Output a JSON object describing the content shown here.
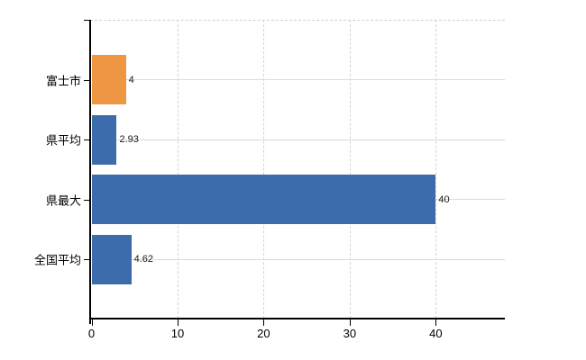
{
  "chart_data": {
    "type": "bar",
    "orientation": "horizontal",
    "title": "",
    "xlabel": "",
    "ylabel": "",
    "categories": [
      "富士市",
      "県平均",
      "県最大",
      "全国平均"
    ],
    "values": [
      4,
      2.93,
      40,
      4.62
    ],
    "value_labels": [
      "4",
      "2.93",
      "40",
      "4.62"
    ],
    "bar_colors": [
      "#ee9643",
      "#3c6cab",
      "#3c6cab",
      "#3c6cab"
    ],
    "x_ticks": [
      0,
      10,
      20,
      30,
      40
    ],
    "x_tick_labels": [
      "0",
      "10",
      "20",
      "30",
      "40"
    ],
    "xlim": [
      0,
      48
    ],
    "grid": true,
    "legend": false,
    "colors": {
      "background": "#ffffff",
      "axis": "#000000",
      "horizontal_gridline": "#d8ddd5",
      "vertical_gridline": "#d4d4d4",
      "top_border": "#cfcfcf",
      "value_label_text": "#1a1a1a",
      "category_label_text": "#000000"
    }
  }
}
